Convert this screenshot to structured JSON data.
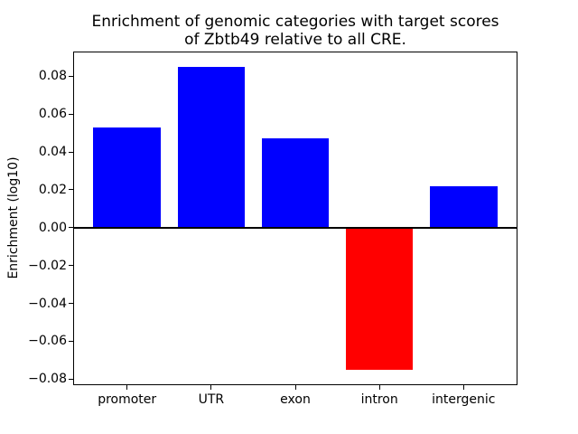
{
  "figure": {
    "background": "#ffffff"
  },
  "chart_data": {
    "type": "bar",
    "title": "Enrichment of genomic categories with target scores\nof Zbtb49 relative to all CRE.",
    "xlabel": "",
    "ylabel": "Enrichment (log10)",
    "categories": [
      "promoter",
      "UTR",
      "exon",
      "intron",
      "intergenic"
    ],
    "values": [
      0.053,
      0.085,
      0.047,
      -0.075,
      0.022
    ],
    "bar_colors": [
      "#0000ff",
      "#0000ff",
      "#0000ff",
      "#ff0000",
      "#0000ff"
    ],
    "bar_width": 0.8,
    "xlim": [
      -0.63,
      4.63
    ],
    "ylim": [
      -0.0827,
      0.0926
    ],
    "ytick_values": [
      0.08,
      0.06,
      0.04,
      0.02,
      0,
      -0.02,
      -0.04,
      -0.06,
      -0.08
    ],
    "ytick_labels": [
      "0.08",
      "0.06",
      "0.04",
      "0.02",
      "0.00",
      "−0.02",
      "−0.04",
      "−0.06",
      "−0.08"
    ],
    "grid": false,
    "legend": false,
    "zero_line_color": "#000000"
  }
}
